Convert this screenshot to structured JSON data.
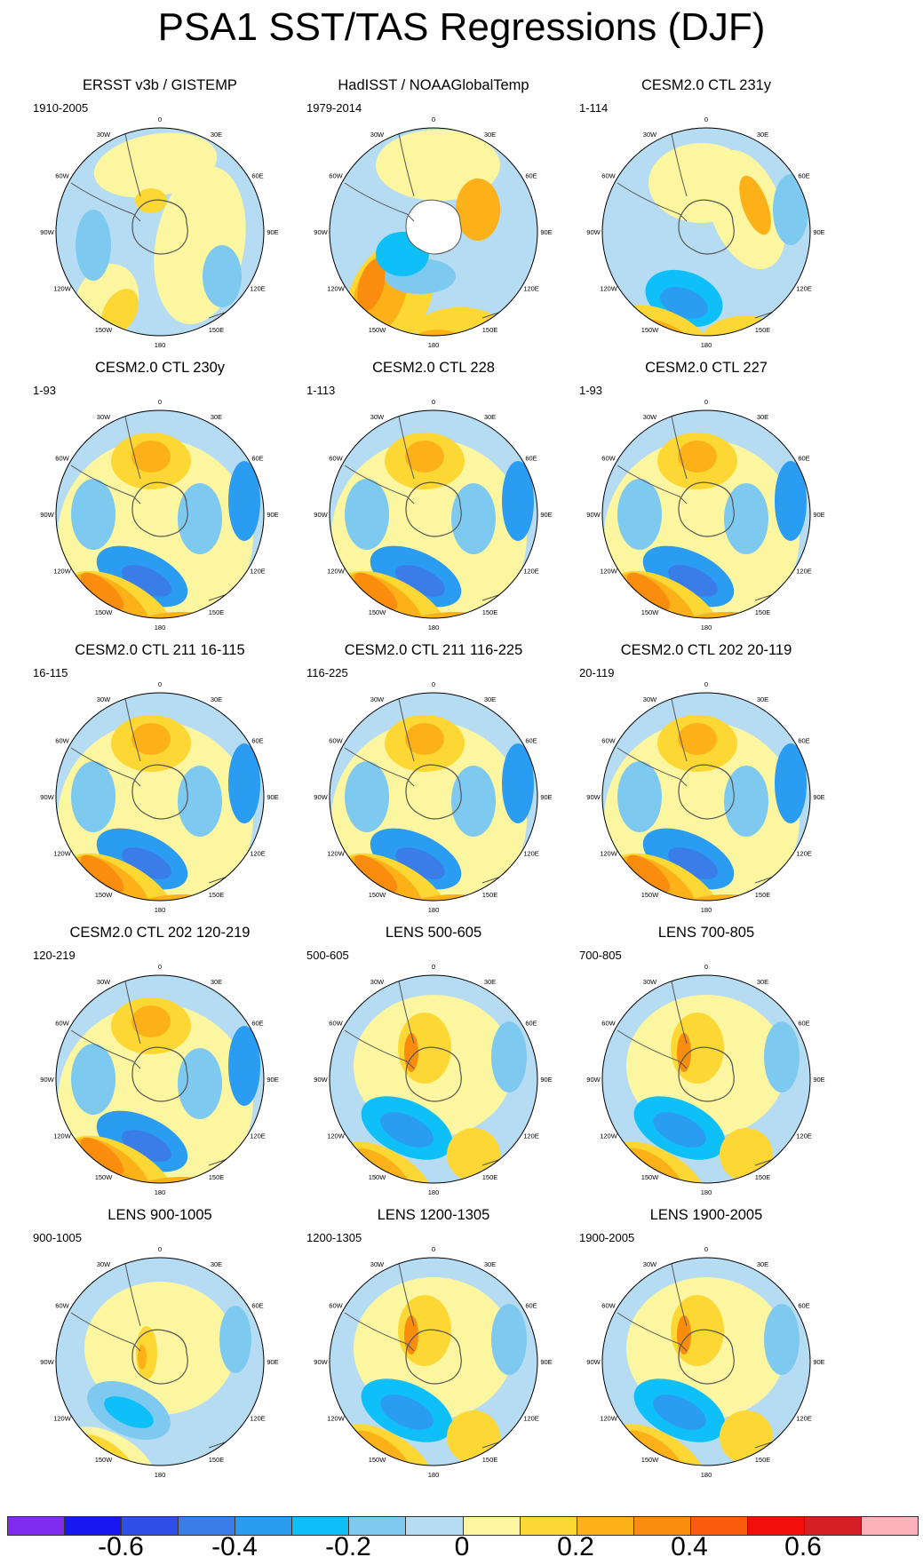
{
  "figure": {
    "title": "PSA1 SST/TAS Regressions (DJF)"
  },
  "longitude_labels": [
    "0",
    "30E",
    "60E",
    "90E",
    "120E",
    "150E",
    "180",
    "150W",
    "120W",
    "90W",
    "60W",
    "30W"
  ],
  "panels": [
    {
      "id": "p1",
      "title": "ERSST v3b / GISTEMP",
      "period": "1910-2005",
      "pos": [
        25,
        86
      ],
      "kind": "obs1"
    },
    {
      "id": "p2",
      "title": "HadISST / NOAAGlobalTemp",
      "period": "1979-2014",
      "pos": [
        333,
        86
      ],
      "kind": "obs2"
    },
    {
      "id": "p3",
      "title": "CESM2.0 CTL 231y",
      "period": "1-114",
      "pos": [
        640,
        86
      ],
      "kind": "ctl"
    },
    {
      "id": "p4",
      "title": "CESM2.0 CTL 230y",
      "period": "1-93",
      "pos": [
        25,
        404
      ],
      "kind": "strong"
    },
    {
      "id": "p5",
      "title": "CESM2.0 CTL 228",
      "period": "1-113",
      "pos": [
        333,
        404
      ],
      "kind": "strong"
    },
    {
      "id": "p6",
      "title": "CESM2.0 CTL 227",
      "period": "1-93",
      "pos": [
        640,
        404
      ],
      "kind": "strong"
    },
    {
      "id": "p7",
      "title": "CESM2.0 CTL 211 16-115",
      "period": "16-115",
      "pos": [
        25,
        722
      ],
      "kind": "strong"
    },
    {
      "id": "p8",
      "title": "CESM2.0 CTL 211 116-225",
      "period": "116-225",
      "pos": [
        333,
        722
      ],
      "kind": "strong"
    },
    {
      "id": "p9",
      "title": "CESM2.0 CTL 202 20-119",
      "period": "20-119",
      "pos": [
        640,
        722
      ],
      "kind": "strong"
    },
    {
      "id": "p10",
      "title": "CESM2.0 CTL 202 120-219",
      "period": "120-219",
      "pos": [
        25,
        1040
      ],
      "kind": "strong"
    },
    {
      "id": "p11",
      "title": "LENS 500-605",
      "period": "500-605",
      "pos": [
        333,
        1040
      ],
      "kind": "lens"
    },
    {
      "id": "p12",
      "title": "LENS 700-805",
      "period": "700-805",
      "pos": [
        640,
        1040
      ],
      "kind": "lens"
    },
    {
      "id": "p13",
      "title": "LENS 900-1005",
      "period": "900-1005",
      "pos": [
        25,
        1358
      ],
      "kind": "lens_weak"
    },
    {
      "id": "p14",
      "title": "LENS 1200-1305",
      "period": "1200-1305",
      "pos": [
        333,
        1358
      ],
      "kind": "lens"
    },
    {
      "id": "p15",
      "title": "LENS 1900-2005",
      "period": "1900-2005",
      "pos": [
        640,
        1358
      ],
      "kind": "lens"
    }
  ],
  "colorbar": {
    "colors": [
      "#7f2bf0",
      "#1a18f0",
      "#2f4ee8",
      "#3a7de8",
      "#2a9cf2",
      "#0fc0f8",
      "#7ec9ef",
      "#b5dcf3",
      "#fdf6a0",
      "#fdd835",
      "#fdb118",
      "#fa8c0e",
      "#f95c0b",
      "#f20f0b",
      "#d51f24",
      "#fbb2ba"
    ],
    "labels": [
      "-0.6",
      "-0.4",
      "-0.2",
      "0",
      "0.2",
      "0.4",
      "0.6"
    ]
  }
}
